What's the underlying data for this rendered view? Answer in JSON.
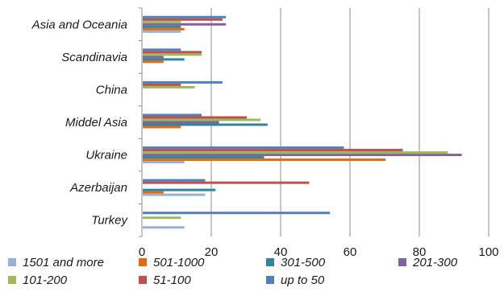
{
  "chart_data": {
    "type": "bar",
    "orientation": "horizontal",
    "categories": [
      "Turkey",
      "Azerbaijan",
      "Ukraine",
      "Middel Asia",
      "China",
      "Scandinavia",
      "Asia and Oceania"
    ],
    "series": [
      {
        "name": "1501 and more",
        "color": "#95b3d7",
        "values": [
          12,
          18,
          12,
          0,
          0,
          0,
          11
        ]
      },
      {
        "name": "501-1000",
        "color": "#e46c0a",
        "values": [
          0,
          6,
          70,
          11,
          0,
          6,
          12
        ]
      },
      {
        "name": "301-500",
        "color": "#31849b",
        "values": [
          0,
          21,
          35,
          36,
          0,
          12,
          11
        ]
      },
      {
        "name": "201-300",
        "color": "#8064a2",
        "values": [
          0,
          0,
          92,
          22,
          0,
          6,
          24
        ]
      },
      {
        "name": "101-200",
        "color": "#9bbb59",
        "values": [
          11,
          0,
          88,
          34,
          15,
          17,
          11
        ]
      },
      {
        "name": "51-100",
        "color": "#c0504d",
        "values": [
          0,
          48,
          75,
          30,
          11,
          17,
          23
        ]
      },
      {
        "name": "up to 50",
        "color": "#4f81bd",
        "values": [
          54,
          18,
          58,
          17,
          23,
          11,
          24
        ]
      }
    ],
    "xlim": [
      0,
      100
    ],
    "x_ticks": [
      "0",
      "20",
      "40",
      "60",
      "80",
      "100"
    ],
    "grid": true,
    "legend_position": "bottom"
  }
}
